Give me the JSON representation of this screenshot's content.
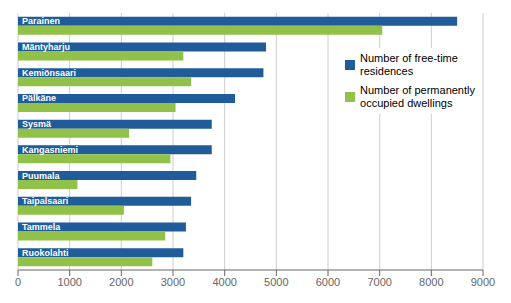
{
  "chart_data": {
    "type": "bar",
    "orientation": "horizontal",
    "categories": [
      "Parainen",
      "Mäntyharju",
      "Kemiönsaari",
      "Pälkäne",
      "Sysmä",
      "Kangasniemi",
      "Puumala",
      "Taipalsaari",
      "Tammela",
      "Ruokolahti"
    ],
    "series": [
      {
        "name": "Number of free-time\nresidences",
        "color": "#1F5C99",
        "values": [
          8500,
          4800,
          4750,
          4200,
          3750,
          3750,
          3450,
          3350,
          3250,
          3200
        ]
      },
      {
        "name": "Number of permanently\noccupied dwellings",
        "color": "#92C14A",
        "values": [
          7050,
          3200,
          3350,
          3050,
          2150,
          2950,
          1150,
          2050,
          2850,
          2600
        ]
      }
    ],
    "xlim": [
      0,
      9000
    ],
    "xticks": [
      0,
      1000,
      2000,
      3000,
      4000,
      5000,
      6000,
      7000,
      8000,
      9000
    ],
    "grid": true,
    "legend": "upper right",
    "tick_labels": "x"
  }
}
